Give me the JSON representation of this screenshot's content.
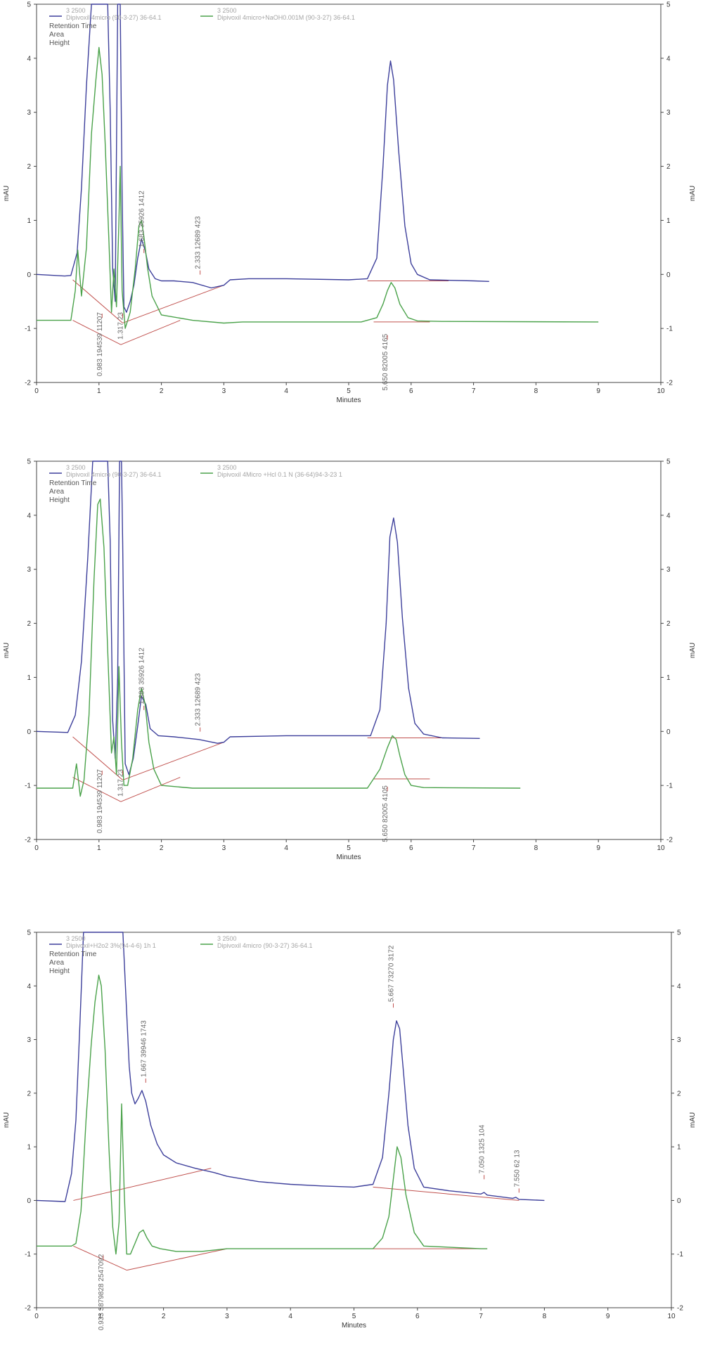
{
  "chart_data": [
    {
      "type": "line",
      "xlabel": "Minutes",
      "ylabel": "mAU",
      "xlim": [
        0,
        10
      ],
      "ylim": [
        -2,
        5
      ],
      "x_ticks": [
        "0",
        "1",
        "2",
        "3",
        "4",
        "5",
        "6",
        "7",
        "8",
        "9",
        "10"
      ],
      "y_ticks": [
        "-2",
        "-1",
        "0",
        "1",
        "2",
        "3",
        "4",
        "5"
      ],
      "legend_items": [
        "Retention Time",
        "Area",
        "Height"
      ],
      "series": [
        {
          "name": "Dipivoxil 4micro (90-3-27) 36-64.1",
          "wavelength": "3 2500",
          "color": "#3d3f9b",
          "x": [
            0,
            0.45,
            0.55,
            0.65,
            0.72,
            0.8,
            0.88,
            0.95,
            1.0,
            1.05,
            1.1,
            1.14,
            1.18,
            1.22,
            1.26,
            1.3,
            1.32,
            1.34,
            1.37,
            1.4,
            1.44,
            1.5,
            1.56,
            1.62,
            1.68,
            1.74,
            1.8,
            1.9,
            2.0,
            2.2,
            2.5,
            2.8,
            3.0,
            3.1,
            3.4,
            4.0,
            5.0,
            5.3,
            5.45,
            5.55,
            5.62,
            5.67,
            5.72,
            5.8,
            5.9,
            6.0,
            6.1,
            6.3,
            7.0,
            7.25
          ],
          "y": [
            0.0,
            -0.03,
            -0.02,
            0.4,
            1.6,
            3.5,
            5.0,
            5.0,
            5.0,
            5.0,
            5.0,
            5.0,
            3.0,
            0.1,
            -0.5,
            5.0,
            5.0,
            5.0,
            1.5,
            -0.6,
            -0.7,
            -0.5,
            -0.2,
            0.3,
            0.65,
            0.45,
            0.1,
            -0.08,
            -0.12,
            -0.12,
            -0.15,
            -0.25,
            -0.2,
            -0.1,
            -0.08,
            -0.08,
            -0.1,
            -0.08,
            0.3,
            2.0,
            3.5,
            3.95,
            3.6,
            2.3,
            0.9,
            0.2,
            0.0,
            -0.1,
            -0.12,
            -0.13
          ]
        },
        {
          "name": "Dipivoxil 4micro+NaOH0.001M (90-3-27) 36-64.1",
          "wavelength": "3 2500",
          "color": "#4aa24a",
          "x": [
            0,
            0.55,
            0.62,
            0.66,
            0.72,
            0.8,
            0.88,
            0.95,
            1.0,
            1.05,
            1.1,
            1.16,
            1.2,
            1.24,
            1.28,
            1.32,
            1.34,
            1.37,
            1.42,
            1.5,
            1.58,
            1.64,
            1.68,
            1.72,
            1.78,
            1.85,
            2.0,
            2.5,
            3.0,
            3.3,
            5.2,
            5.45,
            5.55,
            5.62,
            5.68,
            5.74,
            5.82,
            5.95,
            6.1,
            6.5,
            9.0
          ],
          "y": [
            -0.85,
            -0.85,
            -0.3,
            0.45,
            -0.4,
            0.5,
            2.6,
            3.6,
            4.2,
            3.7,
            2.4,
            0.6,
            -0.7,
            0.1,
            -0.6,
            1.0,
            2.0,
            -0.3,
            -1.0,
            -0.7,
            0.1,
            0.9,
            1.0,
            0.7,
            0.1,
            -0.4,
            -0.75,
            -0.85,
            -0.9,
            -0.88,
            -0.88,
            -0.8,
            -0.55,
            -0.3,
            -0.15,
            -0.25,
            -0.55,
            -0.8,
            -0.86,
            -0.87,
            -0.88
          ]
        }
      ],
      "peak_labels": [
        "0.983 194539 11207",
        "1.317 23",
        "1.683 35926 1412",
        "2.333 12689 423",
        "5.650 82005 4165"
      ]
    },
    {
      "type": "line",
      "xlabel": "Minutes",
      "ylabel": "mAU",
      "xlim": [
        0,
        10
      ],
      "ylim": [
        -2,
        5
      ],
      "x_ticks": [
        "0",
        "1",
        "2",
        "3",
        "4",
        "5",
        "6",
        "7",
        "8",
        "9",
        "10"
      ],
      "y_ticks": [
        "-2",
        "-1",
        "0",
        "1",
        "2",
        "3",
        "4",
        "5"
      ],
      "legend_items": [
        "Retention Time",
        "Area",
        "Height"
      ],
      "series": [
        {
          "name": "Dipivoxil 4micro (90-3-27) 36-64.1",
          "wavelength": "3 2500",
          "color": "#3d3f9b",
          "x": [
            0,
            0.5,
            0.62,
            0.72,
            0.82,
            0.9,
            0.96,
            1.0,
            1.05,
            1.1,
            1.14,
            1.18,
            1.22,
            1.26,
            1.3,
            1.33,
            1.36,
            1.38,
            1.42,
            1.48,
            1.55,
            1.62,
            1.68,
            1.75,
            1.82,
            1.95,
            2.2,
            2.6,
            2.9,
            3.0,
            3.1,
            4.0,
            5.0,
            5.35,
            5.5,
            5.6,
            5.66,
            5.72,
            5.78,
            5.86,
            5.96,
            6.06,
            6.2,
            6.5,
            7.1
          ],
          "y": [
            0.0,
            -0.02,
            0.3,
            1.3,
            3.2,
            5.0,
            5.0,
            5.0,
            5.0,
            5.0,
            5.0,
            3.5,
            0.2,
            -0.5,
            1.0,
            5.0,
            5.0,
            3.5,
            -0.6,
            -0.8,
            -0.5,
            0.1,
            0.65,
            0.5,
            0.05,
            -0.08,
            -0.1,
            -0.15,
            -0.22,
            -0.2,
            -0.1,
            -0.08,
            -0.08,
            -0.08,
            0.4,
            2.0,
            3.6,
            3.95,
            3.5,
            2.1,
            0.8,
            0.15,
            -0.05,
            -0.12,
            -0.13
          ]
        },
        {
          "name": "Dipivoxil 4Micro +Hcl 0.1 N (36-64)94-3-23 1",
          "wavelength": "3 2500",
          "color": "#4aa24a",
          "x": [
            0,
            0.58,
            0.64,
            0.7,
            0.76,
            0.84,
            0.92,
            0.98,
            1.02,
            1.08,
            1.14,
            1.2,
            1.24,
            1.28,
            1.32,
            1.36,
            1.4,
            1.46,
            1.54,
            1.62,
            1.68,
            1.74,
            1.8,
            1.88,
            2.0,
            2.5,
            3.0,
            5.3,
            5.5,
            5.62,
            5.7,
            5.76,
            5.82,
            5.9,
            6.0,
            6.2,
            7.75
          ],
          "y": [
            -1.05,
            -1.05,
            -0.6,
            -1.2,
            -0.9,
            0.3,
            2.8,
            4.2,
            4.3,
            3.4,
            1.5,
            -0.4,
            -0.1,
            -0.8,
            1.2,
            -0.2,
            -1.0,
            -1.0,
            -0.5,
            0.4,
            0.8,
            0.5,
            -0.2,
            -0.7,
            -1.0,
            -1.05,
            -1.05,
            -1.05,
            -0.7,
            -0.3,
            -0.08,
            -0.15,
            -0.45,
            -0.8,
            -1.0,
            -1.04,
            -1.05
          ]
        }
      ],
      "peak_labels": [
        "0.983 194539 11207",
        "1.317 23",
        "1.683 35926 1412",
        "2.333 12689 423",
        "5.650 82005 4105"
      ]
    },
    {
      "type": "line",
      "xlabel": "Minutes",
      "ylabel": "mAU",
      "xlim": [
        0,
        10
      ],
      "ylim": [
        -2,
        5
      ],
      "x_ticks": [
        "0",
        "1",
        "2",
        "3",
        "4",
        "5",
        "6",
        "7",
        "8",
        "9",
        "10"
      ],
      "y_ticks": [
        "-2",
        "-1",
        "0",
        "1",
        "2",
        "3",
        "4",
        "5"
      ],
      "legend_items": [
        "Retention Time",
        "Area",
        "Height"
      ],
      "series": [
        {
          "name": "Dipivoxil+H2o2 3%(94-4-6) 1h 1",
          "wavelength": "3 2500",
          "color": "#3d3f9b",
          "x": [
            0,
            0.45,
            0.55,
            0.62,
            0.68,
            0.74,
            0.8,
            0.85,
            0.9,
            1.0,
            1.1,
            1.2,
            1.26,
            1.3,
            1.36,
            1.42,
            1.46,
            1.5,
            1.55,
            1.6,
            1.66,
            1.72,
            1.8,
            1.9,
            2.0,
            2.2,
            2.5,
            2.8,
            3.0,
            3.5,
            4.0,
            4.5,
            5.0,
            5.3,
            5.45,
            5.55,
            5.62,
            5.67,
            5.72,
            5.78,
            5.85,
            5.95,
            6.1,
            6.5,
            7.0,
            7.05,
            7.1,
            7.5,
            7.55,
            7.6,
            8.0
          ],
          "y": [
            0.0,
            -0.02,
            0.5,
            1.5,
            3.2,
            5.0,
            5.0,
            5.0,
            5.0,
            5.0,
            5.0,
            5.0,
            5.0,
            5.0,
            5.0,
            3.5,
            2.5,
            2.0,
            1.8,
            1.9,
            2.05,
            1.85,
            1.4,
            1.05,
            0.85,
            0.7,
            0.6,
            0.52,
            0.45,
            0.35,
            0.3,
            0.27,
            0.25,
            0.3,
            0.8,
            2.0,
            3.0,
            3.35,
            3.2,
            2.4,
            1.4,
            0.6,
            0.25,
            0.18,
            0.12,
            0.15,
            0.1,
            0.04,
            0.06,
            0.02,
            0.0
          ]
        },
        {
          "name": "Dipivoxil 4micro (90-3-27) 36-64.1",
          "wavelength": "3 2500",
          "color": "#4aa24a",
          "x": [
            0,
            0.55,
            0.62,
            0.7,
            0.78,
            0.86,
            0.92,
            0.98,
            1.02,
            1.08,
            1.14,
            1.2,
            1.25,
            1.3,
            1.34,
            1.38,
            1.42,
            1.48,
            1.55,
            1.62,
            1.68,
            1.74,
            1.82,
            1.95,
            2.2,
            2.6,
            3.0,
            5.3,
            5.45,
            5.55,
            5.62,
            5.68,
            5.74,
            5.82,
            5.95,
            6.1,
            7.0,
            7.1
          ],
          "y": [
            -0.85,
            -0.85,
            -0.8,
            -0.2,
            1.5,
            2.9,
            3.7,
            4.2,
            4.0,
            2.8,
            1.0,
            -0.5,
            -1.0,
            -0.4,
            1.8,
            0.2,
            -1.0,
            -1.0,
            -0.8,
            -0.6,
            -0.55,
            -0.7,
            -0.85,
            -0.9,
            -0.95,
            -0.95,
            -0.9,
            -0.9,
            -0.7,
            -0.3,
            0.4,
            1.0,
            0.8,
            0.1,
            -0.6,
            -0.85,
            -0.9,
            -0.9
          ]
        }
      ],
      "peak_labels": [
        "0.933 3879828 2547092",
        "1.667 39946 1743",
        "5.667 73270 3172",
        "7.050 1325 104",
        "7.550 62 13"
      ]
    }
  ]
}
